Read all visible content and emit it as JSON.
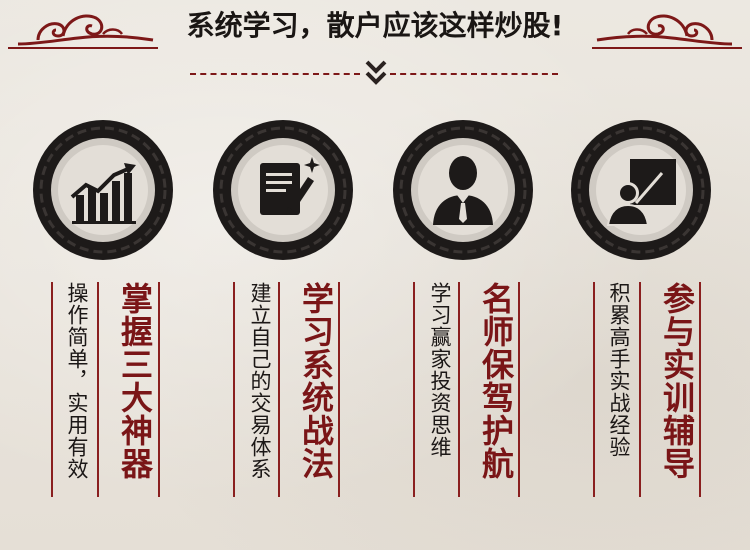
{
  "header": {
    "title": "系统学习，散户应该这样炒股!"
  },
  "features": [
    {
      "icon": "rising-chart-icon",
      "title": "掌握三大神器",
      "subtitle": "操作简单，实用有效"
    },
    {
      "icon": "notepad-pen-icon",
      "title": "学习系统战法",
      "subtitle": "建立自己的交易体系"
    },
    {
      "icon": "businessman-icon",
      "title": "名师保驾护航",
      "subtitle": "学习赢家投资思维"
    },
    {
      "icon": "teacher-board-icon",
      "title": "参与实训辅导",
      "subtitle": "积累高手实战经验"
    }
  ],
  "colors": {
    "accent": "#7a1517",
    "ink": "#1b1716",
    "background": "#e9e4dc"
  }
}
